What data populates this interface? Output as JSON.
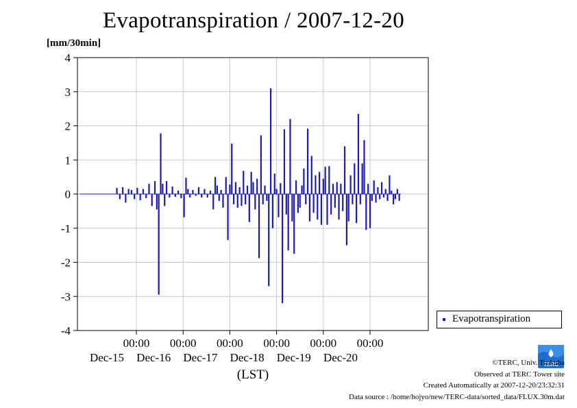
{
  "title": "Evapotranspiration / 2007-12-20",
  "unit_label": "[mm/30min]",
  "legend": {
    "label": "Evapotranspiration"
  },
  "credits": {
    "line1": "©TERC, Univ. Tsukuba",
    "line2": "Observed at TERC Tower site",
    "line3": "Created Automatically at 2007-12-20/23:32:31",
    "line4": "Data source : /home/hojyo/new/TERC-data/sorted_data/FLUX.30m.dat"
  },
  "logo": {
    "text": "TERC"
  },
  "colors": {
    "series": "#1a1ab8",
    "grid": "#c8c8c8",
    "axis": "#000000"
  },
  "chart_data": {
    "type": "bar",
    "title": "Evapotranspiration / 2007-12-20",
    "ylabel": "[mm/30min]",
    "xlabel": "(LST)",
    "ylim": [
      -4,
      4
    ],
    "yticks": [
      4,
      3,
      2,
      1,
      0,
      -1,
      -2,
      -3,
      -4
    ],
    "xlim": [
      "2007-12-14 14:00",
      "2007-12-20 20:30"
    ],
    "xticks": [
      {
        "time": "00:00",
        "day": "Dec-15",
        "at": "2007-12-15 00:00"
      },
      {
        "time": "00:00",
        "day": "Dec-16",
        "at": "2007-12-16 00:00"
      },
      {
        "time": "00:00",
        "day": "Dec-17",
        "at": "2007-12-17 00:00"
      },
      {
        "time": "00:00",
        "day": "Dec-18",
        "at": "2007-12-18 00:00"
      },
      {
        "time": "00:00",
        "day": "Dec-19",
        "at": "2007-12-19 00:00"
      },
      {
        "time": "00:00",
        "day": "Dec-20",
        "at": "2007-12-20 00:00"
      }
    ],
    "grid": true,
    "legend_position": "right",
    "series": [
      {
        "name": "Evapotranspiration",
        "points": [
          [
            "2007-12-14 14:00",
            0.18
          ],
          [
            "2007-12-14 15:30",
            -0.15
          ],
          [
            "2007-12-14 17:00",
            0.2
          ],
          [
            "2007-12-14 18:30",
            -0.25
          ],
          [
            "2007-12-14 20:00",
            0.15
          ],
          [
            "2007-12-14 21:30",
            0.12
          ],
          [
            "2007-12-14 23:00",
            -0.15
          ],
          [
            "2007-12-15 00:30",
            0.18
          ],
          [
            "2007-12-15 02:00",
            -0.18
          ],
          [
            "2007-12-15 03:30",
            0.15
          ],
          [
            "2007-12-15 05:00",
            -0.12
          ],
          [
            "2007-12-15 06:30",
            0.3
          ],
          [
            "2007-12-15 08:00",
            -0.35
          ],
          [
            "2007-12-15 09:30",
            0.38
          ],
          [
            "2007-12-15 10:30",
            -0.45
          ],
          [
            "2007-12-15 11:30",
            -2.95
          ],
          [
            "2007-12-15 12:30",
            1.78
          ],
          [
            "2007-12-15 13:30",
            0.3
          ],
          [
            "2007-12-15 14:30",
            -0.35
          ],
          [
            "2007-12-15 15:30",
            0.38
          ],
          [
            "2007-12-15 17:00",
            -0.1
          ],
          [
            "2007-12-15 18:30",
            0.22
          ],
          [
            "2007-12-15 20:00",
            -0.08
          ],
          [
            "2007-12-15 21:30",
            0.1
          ],
          [
            "2007-12-15 23:00",
            -0.12
          ],
          [
            "2007-12-16 00:30",
            -0.68
          ],
          [
            "2007-12-16 01:30",
            0.48
          ],
          [
            "2007-12-16 02:30",
            0.15
          ],
          [
            "2007-12-16 03:30",
            -0.1
          ],
          [
            "2007-12-16 05:00",
            0.12
          ],
          [
            "2007-12-16 06:30",
            -0.05
          ],
          [
            "2007-12-16 08:00",
            0.2
          ],
          [
            "2007-12-16 09:30",
            -0.1
          ],
          [
            "2007-12-16 11:00",
            0.15
          ],
          [
            "2007-12-16 12:30",
            -0.1
          ],
          [
            "2007-12-16 14:00",
            0.1
          ],
          [
            "2007-12-16 15:30",
            -0.45
          ],
          [
            "2007-12-16 16:30",
            0.5
          ],
          [
            "2007-12-16 17:30",
            0.25
          ],
          [
            "2007-12-16 18:30",
            -0.2
          ],
          [
            "2007-12-16 19:30",
            0.12
          ],
          [
            "2007-12-16 20:30",
            -0.4
          ],
          [
            "2007-12-16 22:00",
            0.5
          ],
          [
            "2007-12-16 23:00",
            -1.35
          ],
          [
            "2007-12-17 00:00",
            0.28
          ],
          [
            "2007-12-17 01:00",
            1.48
          ],
          [
            "2007-12-17 02:00",
            -0.3
          ],
          [
            "2007-12-17 03:00",
            0.35
          ],
          [
            "2007-12-17 04:00",
            -0.4
          ],
          [
            "2007-12-17 05:00",
            0.2
          ],
          [
            "2007-12-17 06:00",
            -0.35
          ],
          [
            "2007-12-17 07:00",
            0.68
          ],
          [
            "2007-12-17 08:00",
            -0.3
          ],
          [
            "2007-12-17 09:00",
            0.25
          ],
          [
            "2007-12-17 10:00",
            -0.82
          ],
          [
            "2007-12-17 11:00",
            0.65
          ],
          [
            "2007-12-17 12:00",
            0.35
          ],
          [
            "2007-12-17 13:00",
            -0.45
          ],
          [
            "2007-12-17 14:00",
            0.45
          ],
          [
            "2007-12-17 15:00",
            -1.88
          ],
          [
            "2007-12-17 16:00",
            1.72
          ],
          [
            "2007-12-17 17:00",
            -0.3
          ],
          [
            "2007-12-17 18:00",
            0.25
          ],
          [
            "2007-12-17 19:00",
            -0.2
          ],
          [
            "2007-12-17 20:00",
            -2.7
          ],
          [
            "2007-12-17 21:00",
            3.1
          ],
          [
            "2007-12-17 22:00",
            -1.0
          ],
          [
            "2007-12-17 23:00",
            0.6
          ],
          [
            "2007-12-18 00:00",
            0.15
          ],
          [
            "2007-12-18 01:00",
            -0.68
          ],
          [
            "2007-12-18 02:00",
            0.32
          ],
          [
            "2007-12-18 03:00",
            -3.2
          ],
          [
            "2007-12-18 04:00",
            1.9
          ],
          [
            "2007-12-18 05:00",
            -0.6
          ],
          [
            "2007-12-18 06:00",
            -1.65
          ],
          [
            "2007-12-18 07:00",
            2.2
          ],
          [
            "2007-12-18 08:00",
            -0.8
          ],
          [
            "2007-12-18 09:00",
            -1.75
          ],
          [
            "2007-12-18 10:00",
            0.4
          ],
          [
            "2007-12-18 11:00",
            -0.55
          ],
          [
            "2007-12-18 12:00",
            -0.4
          ],
          [
            "2007-12-18 13:00",
            0.25
          ],
          [
            "2007-12-18 14:00",
            0.75
          ],
          [
            "2007-12-18 15:00",
            -0.3
          ],
          [
            "2007-12-18 16:00",
            1.92
          ],
          [
            "2007-12-18 17:00",
            -0.8
          ],
          [
            "2007-12-18 18:00",
            1.12
          ],
          [
            "2007-12-18 19:00",
            -0.55
          ],
          [
            "2007-12-18 20:00",
            0.55
          ],
          [
            "2007-12-18 21:00",
            -0.75
          ],
          [
            "2007-12-18 22:00",
            0.65
          ],
          [
            "2007-12-18 23:00",
            -0.9
          ],
          [
            "2007-12-19 00:00",
            0.45
          ],
          [
            "2007-12-19 01:00",
            0.8
          ],
          [
            "2007-12-19 02:00",
            -0.9
          ],
          [
            "2007-12-19 03:00",
            0.82
          ],
          [
            "2007-12-19 04:00",
            -0.6
          ],
          [
            "2007-12-19 05:00",
            0.3
          ],
          [
            "2007-12-19 06:00",
            -0.4
          ],
          [
            "2007-12-19 07:00",
            0.35
          ],
          [
            "2007-12-19 08:00",
            -0.75
          ],
          [
            "2007-12-19 09:00",
            0.3
          ],
          [
            "2007-12-19 10:00",
            -0.5
          ],
          [
            "2007-12-19 11:00",
            1.4
          ],
          [
            "2007-12-19 12:00",
            -1.5
          ],
          [
            "2007-12-19 13:00",
            -0.8
          ],
          [
            "2007-12-19 14:00",
            0.55
          ],
          [
            "2007-12-19 15:00",
            -0.3
          ],
          [
            "2007-12-19 16:00",
            0.9
          ],
          [
            "2007-12-19 17:00",
            -0.85
          ],
          [
            "2007-12-19 18:00",
            2.35
          ],
          [
            "2007-12-19 19:00",
            -0.3
          ],
          [
            "2007-12-19 20:00",
            0.9
          ],
          [
            "2007-12-19 21:00",
            1.58
          ],
          [
            "2007-12-19 22:00",
            -1.05
          ],
          [
            "2007-12-19 23:00",
            0.3
          ],
          [
            "2007-12-20 00:00",
            -1.0
          ],
          [
            "2007-12-20 01:00",
            -0.2
          ],
          [
            "2007-12-20 02:00",
            0.4
          ],
          [
            "2007-12-20 03:00",
            -0.25
          ],
          [
            "2007-12-20 04:00",
            0.2
          ],
          [
            "2007-12-20 05:00",
            -0.15
          ],
          [
            "2007-12-20 06:00",
            0.35
          ],
          [
            "2007-12-20 07:00",
            -0.1
          ],
          [
            "2007-12-20 08:00",
            0.15
          ],
          [
            "2007-12-20 09:00",
            -0.2
          ],
          [
            "2007-12-20 10:00",
            0.55
          ],
          [
            "2007-12-20 11:00",
            0.1
          ],
          [
            "2007-12-20 12:00",
            -0.3
          ],
          [
            "2007-12-20 13:00",
            -0.15
          ],
          [
            "2007-12-20 14:00",
            0.15
          ],
          [
            "2007-12-20 15:00",
            -0.2
          ]
        ]
      }
    ]
  }
}
